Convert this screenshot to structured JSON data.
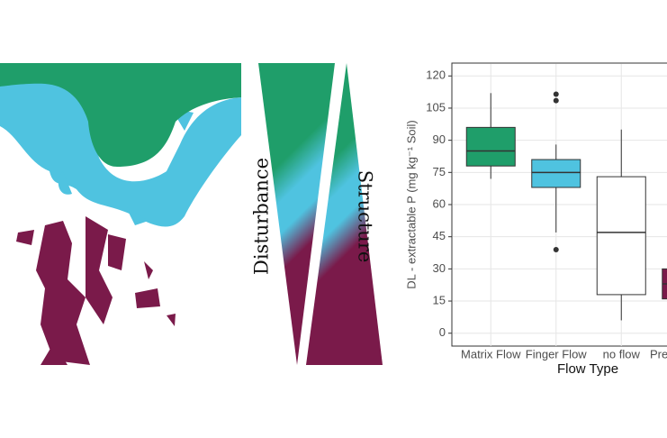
{
  "diagram": {
    "labels": [
      "Disturbance",
      "Structure"
    ]
  },
  "chart_data": {
    "type": "box",
    "y_label": "DL - extractable P  (mg kg⁻¹ Soil)",
    "x_label": "Flow Type",
    "categories": [
      "Matrix Flow",
      "Finger Flow",
      "no flow",
      "Pre"
    ],
    "boxes": [
      {
        "whisker_low": 72,
        "q1": 78,
        "median": 85,
        "q3": 96,
        "whisker_high": 112,
        "outliers": [],
        "color": "#1f9e6a"
      },
      {
        "whisker_low": 47,
        "q1": 68,
        "median": 75,
        "q3": 81,
        "whisker_high": 88,
        "outliers": [
          111.5,
          108.5,
          39
        ],
        "color": "#4fc3e0"
      },
      {
        "whisker_low": 6,
        "q1": 18,
        "median": 47,
        "q3": 73,
        "whisker_high": 95,
        "outliers": [],
        "color": "#ffffff"
      },
      {
        "q1": 16,
        "median": 23,
        "q3": 30,
        "outliers": [],
        "color": "#7a1a4a"
      }
    ],
    "ylim": [
      -6,
      126
    ],
    "yticks": [
      0,
      15,
      30,
      45,
      60,
      75,
      90,
      105,
      120
    ],
    "grid": true
  }
}
